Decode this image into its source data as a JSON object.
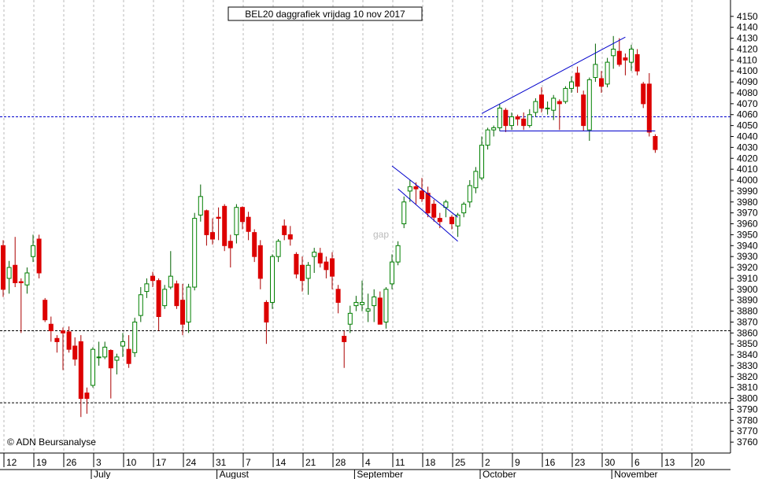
{
  "chart_data": {
    "type": "candlestick",
    "title": "BEL20 daggrafiek vrijdag 10 nov 2017",
    "watermark": "© ADN Beursanalyse",
    "annotation": "gap",
    "ylim": [
      3750,
      4165
    ],
    "y_ticks": [
      3760,
      3770,
      3780,
      3790,
      3800,
      3810,
      3820,
      3830,
      3840,
      3850,
      3860,
      3870,
      3880,
      3890,
      3900,
      3910,
      3920,
      3930,
      3940,
      3950,
      3960,
      3970,
      3980,
      3990,
      4000,
      4010,
      4020,
      4030,
      4040,
      4050,
      4060,
      4070,
      4080,
      4090,
      4100,
      4110,
      4120,
      4130,
      4140,
      4150
    ],
    "x_ticks": [
      "12",
      "19",
      "26",
      "3",
      "10",
      "17",
      "24",
      "31",
      "7",
      "14",
      "21",
      "28",
      "4",
      "11",
      "18",
      "25",
      "2",
      "9",
      "16",
      "23",
      "30",
      "6",
      "13",
      "20"
    ],
    "month_labels": [
      "July",
      "August",
      "September",
      "October",
      "November"
    ],
    "horizontal_levels": [
      {
        "value": 4058,
        "color": "#0000cc",
        "style": "dashed"
      },
      {
        "value": 3862,
        "color": "#000000",
        "style": "dashed"
      },
      {
        "value": 3796,
        "color": "#000000",
        "style": "dashed"
      }
    ],
    "trendlines": [
      {
        "from": [
          "2017-09-11",
          4013
        ],
        "to": [
          "2017-09-26",
          3966
        ]
      },
      {
        "from": [
          "2017-09-12",
          3992
        ],
        "to": [
          "2017-09-26",
          3944
        ]
      },
      {
        "from": [
          "2017-10-02",
          4061
        ],
        "to": [
          "2017-11-03",
          4131
        ]
      },
      {
        "from": [
          "2017-10-05",
          4045
        ],
        "to": [
          "2017-11-10",
          4045
        ]
      }
    ],
    "candles": [
      {
        "date": "2017-06-12",
        "open": 3940,
        "high": 3945,
        "low": 3893,
        "close": 3900
      },
      {
        "date": "2017-06-13",
        "open": 3910,
        "high": 3926,
        "low": 3896,
        "close": 3920
      },
      {
        "date": "2017-06-14",
        "open": 3922,
        "high": 3948,
        "low": 3902,
        "close": 3906
      },
      {
        "date": "2017-06-15",
        "open": 3907,
        "high": 3910,
        "low": 3860,
        "close": 3906
      },
      {
        "date": "2017-06-16",
        "open": 3904,
        "high": 3920,
        "low": 3896,
        "close": 3915
      },
      {
        "date": "2017-06-19",
        "open": 3930,
        "high": 3950,
        "low": 3925,
        "close": 3940
      },
      {
        "date": "2017-06-20",
        "open": 3946,
        "high": 3950,
        "low": 3910,
        "close": 3915
      },
      {
        "date": "2017-06-21",
        "open": 3890,
        "high": 3892,
        "low": 3870,
        "close": 3872
      },
      {
        "date": "2017-06-22",
        "open": 3868,
        "high": 3875,
        "low": 3852,
        "close": 3862
      },
      {
        "date": "2017-06-23",
        "open": 3855,
        "high": 3858,
        "low": 3842,
        "close": 3852
      },
      {
        "date": "2017-06-26",
        "open": 3862,
        "high": 3865,
        "low": 3826,
        "close": 3860
      },
      {
        "date": "2017-06-27",
        "open": 3861,
        "high": 3866,
        "low": 3842,
        "close": 3845
      },
      {
        "date": "2017-06-28",
        "open": 3848,
        "high": 3856,
        "low": 3830,
        "close": 3836
      },
      {
        "date": "2017-06-29",
        "open": 3852,
        "high": 3858,
        "low": 3783,
        "close": 3800
      },
      {
        "date": "2017-06-30",
        "open": 3805,
        "high": 3810,
        "low": 3786,
        "close": 3800
      },
      {
        "date": "2017-07-03",
        "open": 3812,
        "high": 3847,
        "low": 3810,
        "close": 3845
      },
      {
        "date": "2017-07-04",
        "open": 3838,
        "high": 3852,
        "low": 3830,
        "close": 3838
      },
      {
        "date": "2017-07-05",
        "open": 3838,
        "high": 3852,
        "low": 3836,
        "close": 3847
      },
      {
        "date": "2017-07-06",
        "open": 3844,
        "high": 3845,
        "low": 3800,
        "close": 3828
      },
      {
        "date": "2017-07-07",
        "open": 3835,
        "high": 3841,
        "low": 3822,
        "close": 3838
      },
      {
        "date": "2017-07-10",
        "open": 3848,
        "high": 3860,
        "low": 3838,
        "close": 3852
      },
      {
        "date": "2017-07-11",
        "open": 3845,
        "high": 3858,
        "low": 3828,
        "close": 3832
      },
      {
        "date": "2017-07-12",
        "open": 3842,
        "high": 3874,
        "low": 3838,
        "close": 3870
      },
      {
        "date": "2017-07-13",
        "open": 3876,
        "high": 3902,
        "low": 3870,
        "close": 3895
      },
      {
        "date": "2017-07-14",
        "open": 3898,
        "high": 3910,
        "low": 3892,
        "close": 3905
      },
      {
        "date": "2017-07-17",
        "open": 3912,
        "high": 3916,
        "low": 3902,
        "close": 3908
      },
      {
        "date": "2017-07-18",
        "open": 3908,
        "high": 3910,
        "low": 3862,
        "close": 3875
      },
      {
        "date": "2017-07-19",
        "open": 3885,
        "high": 3904,
        "low": 3882,
        "close": 3900
      },
      {
        "date": "2017-07-20",
        "open": 3902,
        "high": 3935,
        "low": 3900,
        "close": 3912
      },
      {
        "date": "2017-07-21",
        "open": 3905,
        "high": 3908,
        "low": 3882,
        "close": 3885
      },
      {
        "date": "2017-07-24",
        "open": 3890,
        "high": 3905,
        "low": 3858,
        "close": 3868
      },
      {
        "date": "2017-07-25",
        "open": 3870,
        "high": 3905,
        "low": 3860,
        "close": 3902
      },
      {
        "date": "2017-07-26",
        "open": 3902,
        "high": 3970,
        "low": 3899,
        "close": 3965
      },
      {
        "date": "2017-07-27",
        "open": 3968,
        "high": 3996,
        "low": 3962,
        "close": 3985
      },
      {
        "date": "2017-07-28",
        "open": 3972,
        "high": 3973,
        "low": 3940,
        "close": 3950
      },
      {
        "date": "2017-07-31",
        "open": 3952,
        "high": 3965,
        "low": 3941,
        "close": 3946
      },
      {
        "date": "2017-08-01",
        "open": 3966,
        "high": 3975,
        "low": 3945,
        "close": 3965
      },
      {
        "date": "2017-08-02",
        "open": 3976,
        "high": 3978,
        "low": 3935,
        "close": 3940
      },
      {
        "date": "2017-08-03",
        "open": 3944,
        "high": 3950,
        "low": 3920,
        "close": 3938
      },
      {
        "date": "2017-08-04",
        "open": 3950,
        "high": 3978,
        "low": 3942,
        "close": 3975
      },
      {
        "date": "2017-08-07",
        "open": 3975,
        "high": 3976,
        "low": 3955,
        "close": 3962
      },
      {
        "date": "2017-08-08",
        "open": 3966,
        "high": 3971,
        "low": 3945,
        "close": 3953
      },
      {
        "date": "2017-08-09",
        "open": 3952,
        "high": 3955,
        "low": 3925,
        "close": 3930
      },
      {
        "date": "2017-08-10",
        "open": 3940,
        "high": 3945,
        "low": 3900,
        "close": 3910
      },
      {
        "date": "2017-08-11",
        "open": 3888,
        "high": 3890,
        "low": 3850,
        "close": 3870
      },
      {
        "date": "2017-08-14",
        "open": 3888,
        "high": 3932,
        "low": 3882,
        "close": 3930
      },
      {
        "date": "2017-08-15",
        "open": 3930,
        "high": 3946,
        "low": 3925,
        "close": 3944
      },
      {
        "date": "2017-08-16",
        "open": 3958,
        "high": 3964,
        "low": 3945,
        "close": 3950
      },
      {
        "date": "2017-08-17",
        "open": 3950,
        "high": 3958,
        "low": 3940,
        "close": 3946
      },
      {
        "date": "2017-08-18",
        "open": 3932,
        "high": 3934,
        "low": 3910,
        "close": 3914
      },
      {
        "date": "2017-08-21",
        "open": 3922,
        "high": 3930,
        "low": 3898,
        "close": 3908
      },
      {
        "date": "2017-08-22",
        "open": 3910,
        "high": 3925,
        "low": 3895,
        "close": 3922
      },
      {
        "date": "2017-08-23",
        "open": 3930,
        "high": 3938,
        "low": 3915,
        "close": 3934
      },
      {
        "date": "2017-08-24",
        "open": 3933,
        "high": 3938,
        "low": 3920,
        "close": 3924
      },
      {
        "date": "2017-08-25",
        "open": 3925,
        "high": 3930,
        "low": 3910,
        "close": 3918
      },
      {
        "date": "2017-08-28",
        "open": 3928,
        "high": 3934,
        "low": 3900,
        "close": 3912
      },
      {
        "date": "2017-08-29",
        "open": 3900,
        "high": 3904,
        "low": 3878,
        "close": 3888
      },
      {
        "date": "2017-08-30",
        "open": 3857,
        "high": 3862,
        "low": 3828,
        "close": 3852
      },
      {
        "date": "2017-08-31",
        "open": 3868,
        "high": 3885,
        "low": 3860,
        "close": 3878
      },
      {
        "date": "2017-09-01",
        "open": 3885,
        "high": 3894,
        "low": 3880,
        "close": 3888
      },
      {
        "date": "2017-09-04",
        "open": 3886,
        "high": 3908,
        "low": 3880,
        "close": 3888
      },
      {
        "date": "2017-09-05",
        "open": 3880,
        "high": 3896,
        "low": 3870,
        "close": 3882
      },
      {
        "date": "2017-09-06",
        "open": 3885,
        "high": 3900,
        "low": 3870,
        "close": 3893
      },
      {
        "date": "2017-09-07",
        "open": 3892,
        "high": 3898,
        "low": 3868,
        "close": 3868
      },
      {
        "date": "2017-09-08",
        "open": 3870,
        "high": 3902,
        "low": 3864,
        "close": 3900
      },
      {
        "date": "2017-09-11",
        "open": 3905,
        "high": 3932,
        "low": 3900,
        "close": 3925
      },
      {
        "date": "2017-09-12",
        "open": 3925,
        "high": 3944,
        "low": 3922,
        "close": 3940
      },
      {
        "date": "2017-09-13",
        "open": 3960,
        "high": 3985,
        "low": 3956,
        "close": 3980
      },
      {
        "date": "2017-09-14",
        "open": 3990,
        "high": 4000,
        "low": 3980,
        "close": 3994
      },
      {
        "date": "2017-09-15",
        "open": 3994,
        "high": 3998,
        "low": 3978,
        "close": 3992
      },
      {
        "date": "2017-09-18",
        "open": 3990,
        "high": 4002,
        "low": 3980,
        "close": 3983
      },
      {
        "date": "2017-09-19",
        "open": 3988,
        "high": 3994,
        "low": 3966,
        "close": 3970
      },
      {
        "date": "2017-09-20",
        "open": 3978,
        "high": 3982,
        "low": 3962,
        "close": 3966
      },
      {
        "date": "2017-09-21",
        "open": 3965,
        "high": 3970,
        "low": 3956,
        "close": 3962
      },
      {
        "date": "2017-09-22",
        "open": 3975,
        "high": 3982,
        "low": 3966,
        "close": 3980
      },
      {
        "date": "2017-09-25",
        "open": 3966,
        "high": 3968,
        "low": 3955,
        "close": 3960
      },
      {
        "date": "2017-09-26",
        "open": 3958,
        "high": 3970,
        "low": 3948,
        "close": 3968
      },
      {
        "date": "2017-09-27",
        "open": 3970,
        "high": 3980,
        "low": 3966,
        "close": 3978
      },
      {
        "date": "2017-09-28",
        "open": 3980,
        "high": 4000,
        "low": 3975,
        "close": 3995
      },
      {
        "date": "2017-09-29",
        "open": 3993,
        "high": 4012,
        "low": 3988,
        "close": 4008
      },
      {
        "date": "2017-10-02",
        "open": 4002,
        "high": 4040,
        "low": 4000,
        "close": 4032
      },
      {
        "date": "2017-10-03",
        "open": 4032,
        "high": 4048,
        "low": 4028,
        "close": 4046
      },
      {
        "date": "2017-10-04",
        "open": 4046,
        "high": 4050,
        "low": 4040,
        "close": 4048
      },
      {
        "date": "2017-10-05",
        "open": 4048,
        "high": 4070,
        "low": 4045,
        "close": 4066
      },
      {
        "date": "2017-10-06",
        "open": 4064,
        "high": 4066,
        "low": 4044,
        "close": 4050
      },
      {
        "date": "2017-10-09",
        "open": 4050,
        "high": 4062,
        "low": 4046,
        "close": 4058
      },
      {
        "date": "2017-10-10",
        "open": 4058,
        "high": 4060,
        "low": 4050,
        "close": 4056
      },
      {
        "date": "2017-10-11",
        "open": 4056,
        "high": 4062,
        "low": 4046,
        "close": 4050
      },
      {
        "date": "2017-10-12",
        "open": 4050,
        "high": 4065,
        "low": 4048,
        "close": 4060
      },
      {
        "date": "2017-10-13",
        "open": 4062,
        "high": 4075,
        "low": 4058,
        "close": 4072
      },
      {
        "date": "2017-10-16",
        "open": 4078,
        "high": 4085,
        "low": 4062,
        "close": 4066
      },
      {
        "date": "2017-10-17",
        "open": 4066,
        "high": 4072,
        "low": 4060,
        "close": 4066
      },
      {
        "date": "2017-10-18",
        "open": 4064,
        "high": 4078,
        "low": 4055,
        "close": 4075
      },
      {
        "date": "2017-10-19",
        "open": 4072,
        "high": 4074,
        "low": 4046,
        "close": 4070
      },
      {
        "date": "2017-10-20",
        "open": 4072,
        "high": 4086,
        "low": 4070,
        "close": 4084
      },
      {
        "date": "2017-10-23",
        "open": 4084,
        "high": 4095,
        "low": 4080,
        "close": 4090
      },
      {
        "date": "2017-10-24",
        "open": 4098,
        "high": 4104,
        "low": 4080,
        "close": 4086
      },
      {
        "date": "2017-10-25",
        "open": 4078,
        "high": 4082,
        "low": 4045,
        "close": 4050
      },
      {
        "date": "2017-10-26",
        "open": 4046,
        "high": 4094,
        "low": 4036,
        "close": 4092
      },
      {
        "date": "2017-10-27",
        "open": 4094,
        "high": 4125,
        "low": 4090,
        "close": 4106
      },
      {
        "date": "2017-10-30",
        "open": 4093,
        "high": 4100,
        "low": 4080,
        "close": 4086
      },
      {
        "date": "2017-10-31",
        "open": 4088,
        "high": 4112,
        "low": 4085,
        "close": 4108
      },
      {
        "date": "2017-11-01",
        "open": 4114,
        "high": 4132,
        "low": 4102,
        "close": 4120
      },
      {
        "date": "2017-11-02",
        "open": 4118,
        "high": 4130,
        "low": 4104,
        "close": 4106
      },
      {
        "date": "2017-11-03",
        "open": 4112,
        "high": 4116,
        "low": 4096,
        "close": 4110
      },
      {
        "date": "2017-11-06",
        "open": 4108,
        "high": 4124,
        "low": 4100,
        "close": 4120
      },
      {
        "date": "2017-11-07",
        "open": 4115,
        "high": 4120,
        "low": 4096,
        "close": 4100
      },
      {
        "date": "2017-11-08",
        "open": 4088,
        "high": 4090,
        "low": 4066,
        "close": 4070
      },
      {
        "date": "2017-11-09",
        "open": 4088,
        "high": 4098,
        "low": 4040,
        "close": 4044
      },
      {
        "date": "2017-11-10",
        "open": 4040,
        "high": 4042,
        "low": 4025,
        "close": 4028
      }
    ],
    "up_color": "#008000",
    "down_color": "#dd0000",
    "trendline_color": "#0000cc",
    "grid": true,
    "grid_style": "dashed-vertical"
  }
}
